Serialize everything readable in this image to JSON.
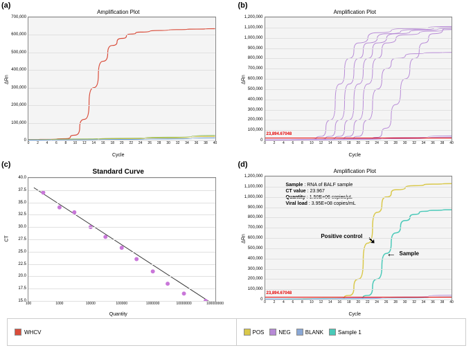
{
  "panels": {
    "a": "(a)",
    "b": "(b)",
    "c": "(c)",
    "d": "(d)"
  },
  "chartA": {
    "type": "line",
    "title": "Amplification Plot",
    "xlabel": "Cycle",
    "ylabel": "ΔRn",
    "xlim": [
      0,
      40
    ],
    "ylim": [
      0,
      700000
    ],
    "yticks": [
      0,
      100000,
      200000,
      300000,
      400000,
      500000,
      600000,
      700000
    ],
    "ytick_labels": [
      "0",
      "100,000",
      "200,000",
      "300,000",
      "400,000",
      "500,000",
      "600,000",
      "700,000"
    ],
    "xticks": [
      0,
      2,
      4,
      6,
      8,
      10,
      12,
      14,
      16,
      18,
      20,
      22,
      24,
      26,
      28,
      30,
      32,
      34,
      36,
      38,
      40
    ],
    "background": "#f4f4f4",
    "grid_color": "#e0e0e0",
    "series": [
      {
        "color": "#d94c3a",
        "width": 1.2,
        "data": [
          [
            0,
            5000
          ],
          [
            4,
            6000
          ],
          [
            8,
            10000
          ],
          [
            10,
            30000
          ],
          [
            12,
            120000
          ],
          [
            14,
            300000
          ],
          [
            16,
            450000
          ],
          [
            18,
            540000
          ],
          [
            20,
            580000
          ],
          [
            22,
            605000
          ],
          [
            24,
            616000
          ],
          [
            28,
            625000
          ],
          [
            32,
            630000
          ],
          [
            36,
            633000
          ],
          [
            40,
            635000
          ]
        ]
      },
      {
        "color": "#7cb342",
        "width": 1,
        "data": [
          [
            0,
            5000
          ],
          [
            10,
            8000
          ],
          [
            20,
            12000
          ],
          [
            30,
            18000
          ],
          [
            40,
            28000
          ]
        ]
      },
      {
        "color": "#e6c84a",
        "width": 1,
        "data": [
          [
            0,
            4000
          ],
          [
            10,
            6000
          ],
          [
            20,
            9000
          ],
          [
            30,
            14000
          ],
          [
            40,
            22000
          ]
        ]
      },
      {
        "color": "#4a8ed9",
        "width": 1,
        "data": [
          [
            0,
            3000
          ],
          [
            10,
            4000
          ],
          [
            20,
            6000
          ],
          [
            30,
            9000
          ],
          [
            40,
            15000
          ]
        ]
      }
    ]
  },
  "chartB": {
    "type": "line",
    "title": "Amplification Plot",
    "xlabel": "Cycle",
    "ylabel": "ΔRn",
    "xlim": [
      0,
      40
    ],
    "ylim": [
      0,
      1200000
    ],
    "yticks": [
      0,
      100000,
      200000,
      300000,
      400000,
      500000,
      600000,
      700000,
      800000,
      900000,
      1000000,
      1100000,
      1200000
    ],
    "ytick_labels": [
      "0",
      "100,000",
      "200,000",
      "300,000",
      "400,000",
      "500,000",
      "600,000",
      "700,000",
      "800,000",
      "900,000",
      "1,000,000",
      "1,100,000",
      "1,200,000"
    ],
    "xticks": [
      0,
      2,
      4,
      6,
      8,
      10,
      12,
      14,
      16,
      18,
      20,
      22,
      24,
      26,
      28,
      30,
      32,
      34,
      36,
      38,
      40
    ],
    "background": "#f4f4f4",
    "grid_color": "#e0e0e0",
    "threshold": {
      "y": 23894,
      "label": "23,894.67048",
      "color": "#e60000"
    },
    "series_color": "#b78ad6",
    "series_width": 1,
    "curves": [
      [
        [
          0,
          5000
        ],
        [
          10,
          10000
        ],
        [
          12,
          40000
        ],
        [
          14,
          200000
        ],
        [
          16,
          550000
        ],
        [
          18,
          800000
        ],
        [
          20,
          950000
        ],
        [
          24,
          1050000
        ],
        [
          30,
          1090000
        ],
        [
          40,
          1110000
        ]
      ],
      [
        [
          0,
          5000
        ],
        [
          12,
          10000
        ],
        [
          14,
          40000
        ],
        [
          16,
          200000
        ],
        [
          18,
          550000
        ],
        [
          20,
          800000
        ],
        [
          22,
          950000
        ],
        [
          26,
          1040000
        ],
        [
          32,
          1080000
        ],
        [
          40,
          1100000
        ]
      ],
      [
        [
          0,
          5000
        ],
        [
          14,
          10000
        ],
        [
          16,
          40000
        ],
        [
          18,
          200000
        ],
        [
          20,
          550000
        ],
        [
          22,
          800000
        ],
        [
          24,
          950000
        ],
        [
          28,
          1040000
        ],
        [
          34,
          1075000
        ],
        [
          40,
          1090000
        ]
      ],
      [
        [
          0,
          5000
        ],
        [
          16,
          10000
        ],
        [
          18,
          40000
        ],
        [
          20,
          200000
        ],
        [
          22,
          550000
        ],
        [
          24,
          800000
        ],
        [
          26,
          950000
        ],
        [
          30,
          1030000
        ],
        [
          36,
          1065000
        ],
        [
          40,
          1080000
        ]
      ],
      [
        [
          0,
          5000
        ],
        [
          18,
          10000
        ],
        [
          20,
          40000
        ],
        [
          22,
          200000
        ],
        [
          24,
          500000
        ],
        [
          26,
          700000
        ],
        [
          28,
          800000
        ],
        [
          32,
          845000
        ],
        [
          36,
          855000
        ],
        [
          40,
          858000
        ]
      ],
      [
        [
          0,
          5000
        ],
        [
          22,
          10000
        ],
        [
          24,
          30000
        ],
        [
          26,
          120000
        ],
        [
          28,
          350000
        ],
        [
          30,
          600000
        ],
        [
          32,
          800000
        ],
        [
          34,
          950000
        ],
        [
          36,
          1040000
        ],
        [
          40,
          1100000
        ]
      ],
      [
        [
          0,
          5000
        ],
        [
          10,
          8000
        ],
        [
          20,
          15000
        ],
        [
          30,
          28000
        ],
        [
          40,
          45000
        ]
      ],
      [
        [
          0,
          4000
        ],
        [
          10,
          6000
        ],
        [
          20,
          10000
        ],
        [
          30,
          18000
        ],
        [
          40,
          32000
        ]
      ]
    ]
  },
  "chartC": {
    "type": "scatter",
    "title": "Standard Curve",
    "xlabel": "Quantity",
    "ylabel": "CT",
    "xscale": "log",
    "xlim": [
      100,
      100000000
    ],
    "ylim": [
      15,
      40
    ],
    "xticks": [
      100,
      1000,
      10000,
      100000,
      1000000,
      10000000,
      100000000
    ],
    "xtick_labels": [
      "100",
      "1000",
      "10000",
      "100000",
      "1000000",
      "10000000",
      "100000000"
    ],
    "yticks": [
      15,
      17.5,
      20,
      22.5,
      25,
      27.5,
      30,
      32.5,
      35,
      37.5,
      40
    ],
    "ytick_labels": [
      "15.0",
      "17.5",
      "20.0",
      "22.5",
      "25.0",
      "27.5",
      "30.0",
      "32.5",
      "35.0",
      "37.5",
      "40.0"
    ],
    "background": "#ffffff",
    "grid_color": "#e8e8e8",
    "marker_color": "#c977d9",
    "marker_size": 3,
    "fit_color": "#333333",
    "points": [
      [
        300,
        37
      ],
      [
        1000,
        34
      ],
      [
        3000,
        33
      ],
      [
        10000,
        30
      ],
      [
        30000,
        28
      ],
      [
        100000,
        25.8
      ],
      [
        300000,
        23.5
      ],
      [
        1000000,
        21
      ],
      [
        3000000,
        18.5
      ],
      [
        10000000,
        16.5
      ],
      [
        50000000,
        15
      ]
    ],
    "fit": [
      [
        150,
        38
      ],
      [
        80000000,
        14.5
      ]
    ]
  },
  "chartD": {
    "type": "line",
    "title": "Amplification Plot",
    "xlabel": "Cycle",
    "ylabel": "ΔRn",
    "xlim": [
      0,
      40
    ],
    "ylim": [
      0,
      1200000
    ],
    "yticks": [
      0,
      100000,
      200000,
      300000,
      400000,
      500000,
      600000,
      700000,
      800000,
      900000,
      1000000,
      1100000,
      1200000
    ],
    "ytick_labels": [
      "0",
      "100,000",
      "200,000",
      "300,000",
      "400,000",
      "500,000",
      "600,000",
      "700,000",
      "800,000",
      "900,000",
      "1,000,000",
      "1,100,000",
      "1,200,000"
    ],
    "xticks": [
      0,
      2,
      4,
      6,
      8,
      10,
      12,
      14,
      16,
      18,
      20,
      22,
      24,
      26,
      28,
      30,
      32,
      34,
      36,
      38,
      40
    ],
    "background": "#f4f4f4",
    "grid_color": "#e0e0e0",
    "threshold": {
      "y": 23894,
      "label": "23,894.67048",
      "color": "#e60000"
    },
    "info": {
      "sample_k": "Sample",
      "sample_v": "RNA of BALF sample",
      "ct_k": "CT value",
      "ct_v": "23.967",
      "qty_k": "Quantity",
      "qty_v": "1.50E+06 copies/µL",
      "load_k": "Viral load",
      "load_v": "3.95E+08 copies/mL"
    },
    "annotations": {
      "pos": "Positive control",
      "sample": "Sample"
    },
    "series": [
      {
        "name": "POS",
        "color": "#d9c84a",
        "width": 1.5,
        "data": [
          [
            0,
            5000
          ],
          [
            16,
            10000
          ],
          [
            18,
            40000
          ],
          [
            20,
            200000
          ],
          [
            22,
            550000
          ],
          [
            24,
            850000
          ],
          [
            26,
            1000000
          ],
          [
            28,
            1070000
          ],
          [
            32,
            1110000
          ],
          [
            36,
            1125000
          ],
          [
            40,
            1130000
          ]
        ]
      },
      {
        "name": "Sample 1",
        "color": "#4ac9b8",
        "width": 1.5,
        "data": [
          [
            0,
            5000
          ],
          [
            20,
            10000
          ],
          [
            22,
            40000
          ],
          [
            24,
            200000
          ],
          [
            26,
            450000
          ],
          [
            28,
            650000
          ],
          [
            30,
            770000
          ],
          [
            32,
            830000
          ],
          [
            34,
            860000
          ],
          [
            36,
            870000
          ],
          [
            40,
            875000
          ]
        ]
      },
      {
        "name": "NEG",
        "color": "#b78ad6",
        "width": 1,
        "data": [
          [
            0,
            5000
          ],
          [
            10,
            8000
          ],
          [
            20,
            14000
          ],
          [
            30,
            25000
          ],
          [
            40,
            42000
          ]
        ]
      },
      {
        "name": "BLANK",
        "color": "#8aa8d6",
        "width": 1,
        "data": [
          [
            0,
            4000
          ],
          [
            10,
            6000
          ],
          [
            20,
            9000
          ],
          [
            30,
            15000
          ],
          [
            40,
            26000
          ]
        ]
      }
    ]
  },
  "legendA": {
    "whcv": "WHCV",
    "color": "#d94c3a"
  },
  "legendD": {
    "items": [
      {
        "label": "POS",
        "color": "#d9c84a"
      },
      {
        "label": "NEG",
        "color": "#b78ad6"
      },
      {
        "label": "BLANK",
        "color": "#8aa8d6"
      },
      {
        "label": "Sample 1",
        "color": "#4ac9b8"
      }
    ]
  }
}
